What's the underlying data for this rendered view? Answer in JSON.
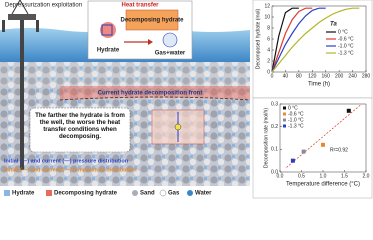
{
  "diagram": {
    "exploitation": "Depressurization exploitation",
    "heat_transfer": "Heat transfer",
    "decomposing": "Decomposing hydrate",
    "hydrate": "Hydrate",
    "products": "Gas+water",
    "front": "Current hydrate decomposition front",
    "note": "The farther the hydrate is from the well, the worse the heat transfer conditions when decomposing.",
    "pressure": "Initial (—) and current (—) pressure distribution",
    "temperature": "Initial (—) and current (—) temperature distribution",
    "legend": [
      "Hydrate",
      "Decomposing hydrate",
      "Sand",
      "Gas",
      "Water"
    ]
  },
  "chart_data": [
    {
      "type": "line",
      "xlabel": "Time (h)",
      "ylabel": "Decomposed hydrate (mol)",
      "legend_title": "Ta",
      "x": [
        0,
        20,
        40,
        60,
        80,
        100,
        120,
        140,
        160,
        180,
        200,
        220,
        240,
        260
      ],
      "xlim": [
        0,
        280
      ],
      "xticks": [
        0,
        40,
        80,
        120,
        160,
        200,
        240,
        280
      ],
      "ylim": [
        0,
        12
      ],
      "yticks": [
        0,
        2,
        4,
        6,
        8,
        10,
        12
      ],
      "series": [
        {
          "name": "0 °C",
          "color": "#111111",
          "values": [
            0,
            6.5,
            10.8,
            11.6,
            11.6,
            null,
            null,
            null,
            null,
            null,
            null,
            null,
            null,
            null
          ]
        },
        {
          "name": "-0.6 °C",
          "color": "#e03a2f",
          "values": [
            0,
            3.5,
            7,
            9.5,
            11,
            11.6,
            11.6,
            null,
            null,
            null,
            null,
            null,
            null,
            null
          ]
        },
        {
          "name": "-1.0 °C",
          "color": "#2a3fc4",
          "values": [
            0,
            2.5,
            5,
            7,
            8.8,
            10.2,
            11.2,
            11.6,
            11.6,
            null,
            null,
            null,
            null,
            null
          ]
        },
        {
          "name": "-1.3 °C",
          "color": "#b5b52a",
          "values": [
            0,
            1.5,
            3,
            4.5,
            5.8,
            7,
            8,
            9,
            9.8,
            10.5,
            11,
            11.4,
            11.6,
            11.6
          ]
        }
      ]
    },
    {
      "type": "scatter",
      "xlabel": "Temperature difference (°C)",
      "ylabel": "Decomposition rate (mol/h)",
      "annotation": "R²=0.92",
      "xlim": [
        0,
        2
      ],
      "xticks": [
        {
          "value": 0,
          "label": "0.0"
        },
        {
          "value": 0.5,
          "label": "0.5"
        },
        {
          "value": 1,
          "label": "1.0"
        },
        {
          "value": 1.5,
          "label": "1.5"
        },
        {
          "value": 2,
          "label": "2.0"
        }
      ],
      "ylim": [
        0,
        0.3
      ],
      "yticks": [
        {
          "value": 0,
          "label": "0.0"
        },
        0.1,
        0.2,
        0.3
      ],
      "series": [
        {
          "name": "0 °C",
          "color": "#111111",
          "x": [
            1.6
          ],
          "values": [
            0.27
          ]
        },
        {
          "name": "-0.6 °C",
          "color": "#e8892a",
          "x": [
            1.0
          ],
          "values": [
            0.12
          ]
        },
        {
          "name": "-1.0 °C",
          "color": "#8a8a9a",
          "x": [
            0.55
          ],
          "values": [
            0.09
          ]
        },
        {
          "name": "-1.3 °C",
          "color": "#2a3fc4",
          "x": [
            0.3
          ],
          "values": [
            0.05
          ]
        }
      ]
    }
  ]
}
